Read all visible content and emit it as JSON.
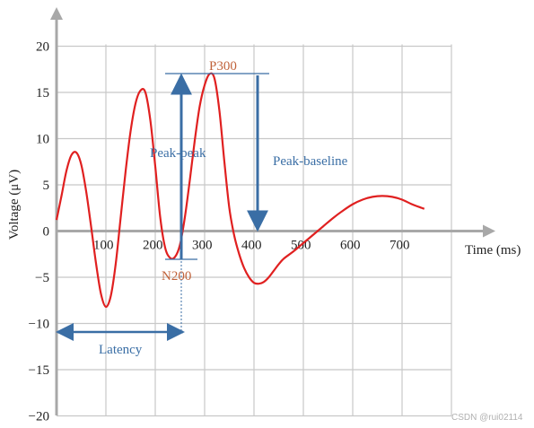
{
  "chart_data": {
    "type": "line",
    "title": "",
    "xlabel": "Time (ms)",
    "ylabel": "Voltage (μV)",
    "xlim": [
      0,
      800
    ],
    "ylim": [
      -20,
      20
    ],
    "grid": true,
    "x_ticks": [
      100,
      200,
      300,
      400,
      500,
      600,
      700
    ],
    "y_ticks": [
      20,
      15,
      10,
      5,
      0,
      -5,
      -10,
      -15,
      -20
    ],
    "x_tick_labels": [
      "100",
      "200",
      "300",
      "400",
      "500",
      "600",
      "700"
    ],
    "y_tick_labels": [
      "20",
      "15",
      "10",
      "5",
      "0",
      "−5",
      "−10",
      "−15",
      "−20"
    ],
    "series": [
      {
        "color": "#e02020",
        "x": [
          0,
          10,
          20,
          30,
          40,
          50,
          60,
          70,
          80,
          90,
          100,
          110,
          120,
          130,
          140,
          150,
          160,
          170,
          180,
          190,
          200,
          210,
          220,
          230,
          240,
          250,
          260,
          270,
          280,
          290,
          300,
          310,
          320,
          330,
          340,
          350,
          360,
          370,
          380,
          390,
          400,
          410,
          420,
          430,
          440,
          450,
          460,
          480,
          500,
          520,
          540,
          560,
          580,
          600,
          620,
          640,
          660,
          680,
          700,
          720,
          740,
          745
        ],
        "y": [
          1.2,
          3.8,
          6.5,
          8.2,
          8.5,
          7.2,
          4.3,
          0.5,
          -3.5,
          -6.8,
          -8.2,
          -7.0,
          -3.5,
          1.5,
          6.5,
          10.8,
          13.8,
          15.2,
          15.0,
          12.0,
          7.0,
          1.5,
          -1.8,
          -2.9,
          -2.8,
          -1.5,
          1.5,
          5.5,
          9.8,
          13.5,
          15.8,
          17.0,
          16.5,
          13.0,
          7.5,
          2.5,
          -0.5,
          -2.5,
          -4.0,
          -5.0,
          -5.6,
          -5.7,
          -5.5,
          -5.0,
          -4.3,
          -3.6,
          -3.0,
          -2.2,
          -1.3,
          -0.4,
          0.5,
          1.4,
          2.2,
          2.9,
          3.4,
          3.7,
          3.8,
          3.7,
          3.4,
          2.9,
          2.5,
          2.4
        ]
      }
    ],
    "annotations": [
      {
        "text": "P300",
        "x": 295,
        "y": 17.0
      },
      {
        "text": "N200",
        "x": 250,
        "y": -3.0
      },
      {
        "text": "Peak-peak",
        "x": 250,
        "y": 8.5
      },
      {
        "text": "Peak-baseline",
        "x": 400,
        "y": 8.0
      },
      {
        "text": "Latency",
        "x": 135,
        "y": -12.5
      }
    ],
    "colors": {
      "line": "#e02020",
      "annotation_blue": "#3a6ea5",
      "annotation_orange": "#c0623a",
      "axis": "#a8a8a8",
      "grid": "#c8c8c8"
    }
  },
  "watermark": "CSDN @rui02114"
}
